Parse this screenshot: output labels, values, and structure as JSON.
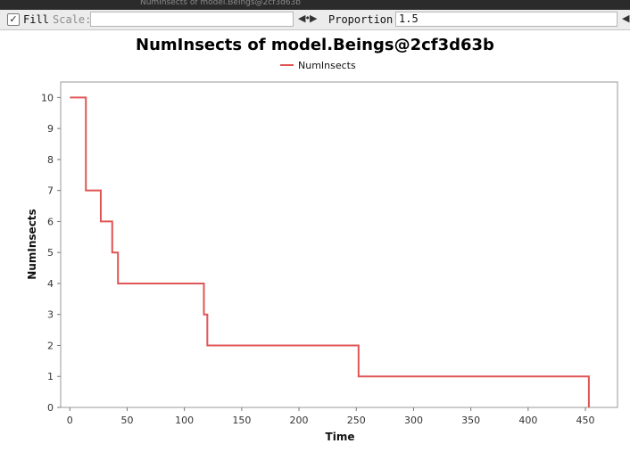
{
  "window": {
    "title": "NumInsects of model.Beings@2cf3d63b"
  },
  "toolbar": {
    "fill_checked": "✓",
    "fill_label": "Fill",
    "scale_label": "Scale:",
    "scale_value": "",
    "proportion_label": "Proportion:",
    "proportion_value": "1.5",
    "stepper_icon": "left-right-arrows-icon"
  },
  "chart_data": {
    "type": "line",
    "title": "NumInsects of model.Beings@2cf3d63b",
    "xlabel": "Time",
    "ylabel": "NumInsects",
    "xlim": [
      -8,
      478
    ],
    "ylim": [
      0,
      10.5
    ],
    "xticks": [
      0,
      50,
      100,
      150,
      200,
      250,
      300,
      350,
      400,
      450
    ],
    "yticks": [
      0,
      1,
      2,
      3,
      4,
      5,
      6,
      7,
      8,
      9,
      10
    ],
    "legend": "top-center",
    "grid": false,
    "step": true,
    "series": [
      {
        "name": "NumInsects",
        "color": "#e05555",
        "x": [
          0,
          14,
          27,
          37,
          42,
          117,
          120,
          252,
          453
        ],
        "y": [
          10,
          7,
          6,
          5,
          4,
          3,
          2,
          1,
          0
        ]
      }
    ]
  }
}
